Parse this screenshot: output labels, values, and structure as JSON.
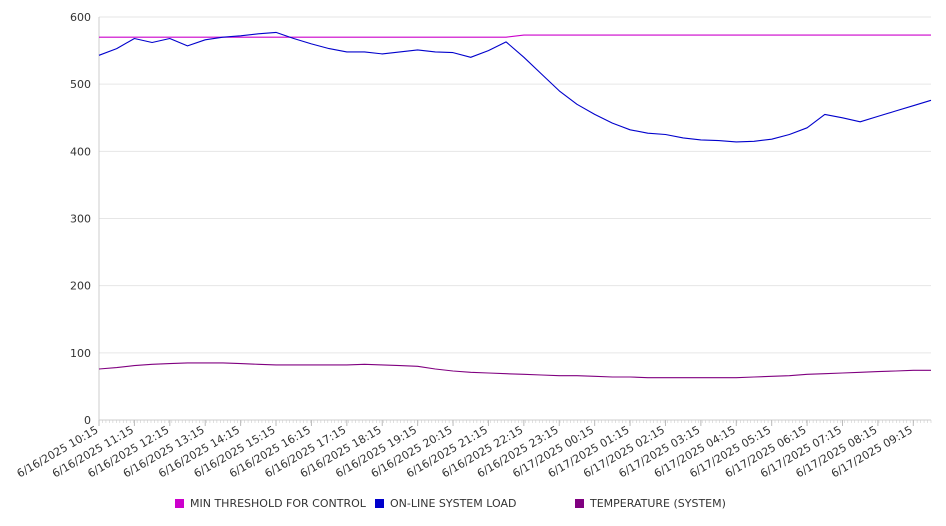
{
  "chart_data": {
    "type": "line",
    "title": "",
    "xlabel": "",
    "ylabel": "",
    "ylim": [
      0,
      600
    ],
    "yticks": [
      0,
      100,
      200,
      300,
      400,
      500,
      600
    ],
    "grid": "horizontal",
    "legend_position": "bottom",
    "x_tick_labels": [
      "6/16/2025 10:15",
      "6/16/2025 11:15",
      "6/16/2025 12:15",
      "6/16/2025 13:15",
      "6/16/2025 14:15",
      "6/16/2025 15:15",
      "6/16/2025 16:15",
      "6/16/2025 17:15",
      "6/16/2025 18:15",
      "6/16/2025 19:15",
      "6/16/2025 20:15",
      "6/16/2025 21:15",
      "6/16/2025 22:15",
      "6/16/2025 23:15",
      "6/17/2025 00:15",
      "6/17/2025 01:15",
      "6/17/2025 02:15",
      "6/17/2025 03:15",
      "6/17/2025 04:15",
      "6/17/2025 05:15",
      "6/17/2025 06:15",
      "6/17/2025 07:15",
      "6/17/2025 08:15",
      "6/17/2025 09:15"
    ],
    "x": [
      "6/16/2025 10:15",
      "6/16/2025 10:45",
      "6/16/2025 11:15",
      "6/16/2025 11:45",
      "6/16/2025 12:15",
      "6/16/2025 12:45",
      "6/16/2025 13:15",
      "6/16/2025 13:45",
      "6/16/2025 14:15",
      "6/16/2025 14:45",
      "6/16/2025 15:15",
      "6/16/2025 15:45",
      "6/16/2025 16:15",
      "6/16/2025 16:45",
      "6/16/2025 17:15",
      "6/16/2025 17:45",
      "6/16/2025 18:15",
      "6/16/2025 18:45",
      "6/16/2025 19:15",
      "6/16/2025 19:45",
      "6/16/2025 20:15",
      "6/16/2025 20:45",
      "6/16/2025 21:15",
      "6/16/2025 21:45",
      "6/16/2025 22:15",
      "6/16/2025 22:45",
      "6/16/2025 23:15",
      "6/16/2025 23:45",
      "6/17/2025 00:15",
      "6/17/2025 00:45",
      "6/17/2025 01:15",
      "6/17/2025 01:45",
      "6/17/2025 02:15",
      "6/17/2025 02:45",
      "6/17/2025 03:15",
      "6/17/2025 03:45",
      "6/17/2025 04:15",
      "6/17/2025 04:45",
      "6/17/2025 05:15",
      "6/17/2025 05:45",
      "6/17/2025 06:15",
      "6/17/2025 06:45",
      "6/17/2025 07:15",
      "6/17/2025 07:45",
      "6/17/2025 08:15",
      "6/17/2025 08:45",
      "6/17/2025 09:15",
      "6/17/2025 09:45"
    ],
    "series": [
      {
        "name": "MIN THRESHOLD FOR CONTROL",
        "color": "#cc00cc",
        "values": [
          570,
          570,
          570,
          570,
          570,
          570,
          570,
          570,
          570,
          570,
          570,
          570,
          570,
          570,
          570,
          570,
          570,
          570,
          570,
          570,
          570,
          570,
          570,
          570,
          573,
          573,
          573,
          573,
          573,
          573,
          573,
          573,
          573,
          573,
          573,
          573,
          573,
          573,
          573,
          573,
          573,
          573,
          573,
          573,
          573,
          573,
          573,
          573
        ]
      },
      {
        "name": "ON-LINE SYSTEM LOAD",
        "color": "#0000cc",
        "values": [
          543,
          553,
          568,
          562,
          568,
          557,
          566,
          570,
          572,
          575,
          577,
          568,
          560,
          553,
          548,
          548,
          545,
          548,
          551,
          548,
          547,
          540,
          550,
          563,
          540,
          515,
          490,
          470,
          455,
          442,
          432,
          427,
          425,
          420,
          417,
          416,
          414,
          415,
          418,
          425,
          435,
          455,
          450,
          444,
          452,
          460,
          468,
          476
        ]
      },
      {
        "name": "TEMPERATURE (SYSTEM)",
        "color": "#800080",
        "values": [
          76,
          78,
          81,
          83,
          84,
          85,
          85,
          85,
          84,
          83,
          82,
          82,
          82,
          82,
          82,
          83,
          82,
          81,
          80,
          76,
          73,
          71,
          70,
          69,
          68,
          67,
          66,
          66,
          65,
          64,
          64,
          63,
          63,
          63,
          63,
          63,
          63,
          64,
          65,
          66,
          68,
          69,
          70,
          71,
          72,
          73,
          74,
          74
        ]
      }
    ]
  }
}
